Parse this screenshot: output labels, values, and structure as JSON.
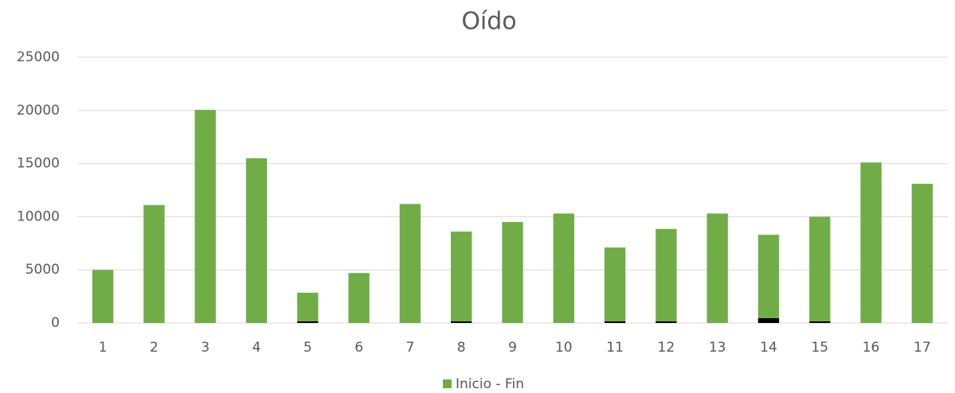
{
  "chart_data": {
    "type": "stacked_bar",
    "title": "Oído",
    "categories": [
      "1",
      "2",
      "3",
      "4",
      "5",
      "6",
      "7",
      "8",
      "9",
      "10",
      "11",
      "12",
      "13",
      "14",
      "15",
      "16",
      "17"
    ],
    "series": [
      {
        "color": "#000000",
        "values": [
          0,
          0,
          0,
          0,
          150,
          0,
          0,
          150,
          0,
          0,
          150,
          150,
          0,
          450,
          150,
          0,
          0
        ]
      },
      {
        "name": "Inicio - Fin",
        "color": "#70ad47",
        "values": [
          5000,
          11100,
          20050,
          15500,
          2700,
          4700,
          11200,
          8450,
          9500,
          10300,
          6950,
          8700,
          10300,
          7850,
          9850,
          15100,
          13100
        ]
      }
    ],
    "ylim": [
      0,
      25000
    ],
    "yticks": [
      0,
      5000,
      10000,
      15000,
      20000,
      25000
    ],
    "grid": true,
    "legend": "bottom"
  }
}
